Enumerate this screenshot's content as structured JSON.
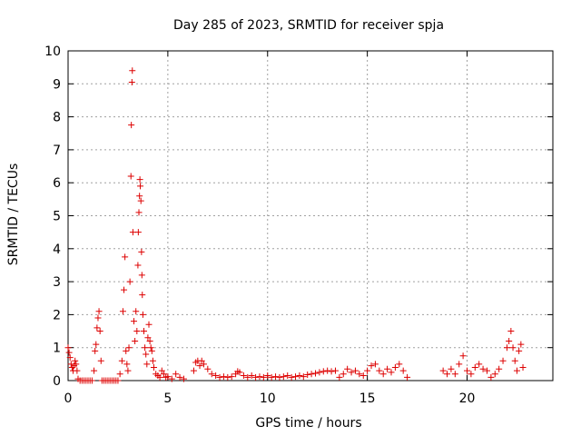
{
  "chart_data": {
    "type": "scatter",
    "title": "Day 285 of 2023, SRMTID for receiver spja",
    "xlabel": "GPS time / hours",
    "ylabel": "SRMTID / TECUs",
    "xlim": [
      0,
      24.3
    ],
    "ylim": [
      0,
      10
    ],
    "xticks": [
      0,
      5,
      10,
      15,
      20
    ],
    "yticks": [
      0,
      1,
      2,
      3,
      4,
      5,
      6,
      7,
      8,
      9,
      10
    ],
    "grid": true,
    "legend": "none",
    "marker": "+",
    "series": [
      {
        "name": "SRMTID",
        "color": "#dd0000",
        "points": [
          [
            0.0,
            1.0
          ],
          [
            0.05,
            0.85
          ],
          [
            0.1,
            0.7
          ],
          [
            0.15,
            0.5
          ],
          [
            0.2,
            0.4
          ],
          [
            0.25,
            0.3
          ],
          [
            0.3,
            0.45
          ],
          [
            0.35,
            0.6
          ],
          [
            0.4,
            0.5
          ],
          [
            0.45,
            0.3
          ],
          [
            0.5,
            0.05
          ],
          [
            0.6,
            0.0
          ],
          [
            0.7,
            0.0
          ],
          [
            0.8,
            0.0
          ],
          [
            0.9,
            0.0
          ],
          [
            1.0,
            0.0
          ],
          [
            1.1,
            0.0
          ],
          [
            1.2,
            0.0
          ],
          [
            1.3,
            0.3
          ],
          [
            1.35,
            0.9
          ],
          [
            1.4,
            1.1
          ],
          [
            1.45,
            1.6
          ],
          [
            1.5,
            1.9
          ],
          [
            1.55,
            2.1
          ],
          [
            1.6,
            1.5
          ],
          [
            1.65,
            0.6
          ],
          [
            1.7,
            0.0
          ],
          [
            1.8,
            0.0
          ],
          [
            1.9,
            0.0
          ],
          [
            2.0,
            0.0
          ],
          [
            2.1,
            0.0
          ],
          [
            2.2,
            0.0
          ],
          [
            2.3,
            0.0
          ],
          [
            2.4,
            0.0
          ],
          [
            2.5,
            0.0
          ],
          [
            2.6,
            0.2
          ],
          [
            2.7,
            0.6
          ],
          [
            2.75,
            2.1
          ],
          [
            2.8,
            2.75
          ],
          [
            2.85,
            3.75
          ],
          [
            2.9,
            0.9
          ],
          [
            2.95,
            0.5
          ],
          [
            3.0,
            0.3
          ],
          [
            3.05,
            1.0
          ],
          [
            3.1,
            3.0
          ],
          [
            3.15,
            6.2
          ],
          [
            3.17,
            7.75
          ],
          [
            3.2,
            9.05
          ],
          [
            3.22,
            9.4
          ],
          [
            3.25,
            4.5
          ],
          [
            3.3,
            1.8
          ],
          [
            3.35,
            1.2
          ],
          [
            3.4,
            2.1
          ],
          [
            3.45,
            1.5
          ],
          [
            3.5,
            3.5
          ],
          [
            3.52,
            4.5
          ],
          [
            3.55,
            5.1
          ],
          [
            3.58,
            5.6
          ],
          [
            3.6,
            6.1
          ],
          [
            3.62,
            5.9
          ],
          [
            3.65,
            5.45
          ],
          [
            3.68,
            3.9
          ],
          [
            3.7,
            3.2
          ],
          [
            3.72,
            2.6
          ],
          [
            3.75,
            2.0
          ],
          [
            3.8,
            1.5
          ],
          [
            3.85,
            1.0
          ],
          [
            3.9,
            0.8
          ],
          [
            3.95,
            0.5
          ],
          [
            4.0,
            1.3
          ],
          [
            4.05,
            1.7
          ],
          [
            4.1,
            1.2
          ],
          [
            4.15,
            1.0
          ],
          [
            4.2,
            0.9
          ],
          [
            4.25,
            0.6
          ],
          [
            4.3,
            0.4
          ],
          [
            4.4,
            0.2
          ],
          [
            4.5,
            0.15
          ],
          [
            4.6,
            0.1
          ],
          [
            4.7,
            0.3
          ],
          [
            4.8,
            0.2
          ],
          [
            4.9,
            0.1
          ],
          [
            5.0,
            0.12
          ],
          [
            5.2,
            0.05
          ],
          [
            5.4,
            0.2
          ],
          [
            5.6,
            0.1
          ],
          [
            5.8,
            0.05
          ],
          [
            6.3,
            0.3
          ],
          [
            6.4,
            0.55
          ],
          [
            6.5,
            0.6
          ],
          [
            6.6,
            0.45
          ],
          [
            6.7,
            0.6
          ],
          [
            6.8,
            0.5
          ],
          [
            7.0,
            0.35
          ],
          [
            7.2,
            0.2
          ],
          [
            7.4,
            0.15
          ],
          [
            7.6,
            0.1
          ],
          [
            7.8,
            0.12
          ],
          [
            8.0,
            0.1
          ],
          [
            8.2,
            0.12
          ],
          [
            8.4,
            0.2
          ],
          [
            8.5,
            0.28
          ],
          [
            8.6,
            0.25
          ],
          [
            8.8,
            0.15
          ],
          [
            9.0,
            0.1
          ],
          [
            9.2,
            0.15
          ],
          [
            9.4,
            0.1
          ],
          [
            9.6,
            0.12
          ],
          [
            9.8,
            0.1
          ],
          [
            10.0,
            0.15
          ],
          [
            10.2,
            0.1
          ],
          [
            10.4,
            0.12
          ],
          [
            10.6,
            0.1
          ],
          [
            10.8,
            0.12
          ],
          [
            11.0,
            0.15
          ],
          [
            11.2,
            0.1
          ],
          [
            11.4,
            0.12
          ],
          [
            11.6,
            0.15
          ],
          [
            11.8,
            0.12
          ],
          [
            12.0,
            0.18
          ],
          [
            12.2,
            0.2
          ],
          [
            12.4,
            0.22
          ],
          [
            12.6,
            0.25
          ],
          [
            12.8,
            0.28
          ],
          [
            13.0,
            0.3
          ],
          [
            13.2,
            0.28
          ],
          [
            13.4,
            0.3
          ],
          [
            13.6,
            0.1
          ],
          [
            13.8,
            0.2
          ],
          [
            14.0,
            0.35
          ],
          [
            14.2,
            0.25
          ],
          [
            14.4,
            0.3
          ],
          [
            14.6,
            0.2
          ],
          [
            14.8,
            0.15
          ],
          [
            15.0,
            0.3
          ],
          [
            15.2,
            0.45
          ],
          [
            15.4,
            0.5
          ],
          [
            15.6,
            0.3
          ],
          [
            15.8,
            0.2
          ],
          [
            16.0,
            0.35
          ],
          [
            16.2,
            0.25
          ],
          [
            16.4,
            0.4
          ],
          [
            16.6,
            0.5
          ],
          [
            16.8,
            0.3
          ],
          [
            17.0,
            0.1
          ],
          [
            18.8,
            0.3
          ],
          [
            19.0,
            0.2
          ],
          [
            19.2,
            0.35
          ],
          [
            19.4,
            0.2
          ],
          [
            19.6,
            0.5
          ],
          [
            19.8,
            0.75
          ],
          [
            20.0,
            0.3
          ],
          [
            20.2,
            0.2
          ],
          [
            20.4,
            0.4
          ],
          [
            20.6,
            0.5
          ],
          [
            20.8,
            0.35
          ],
          [
            21.0,
            0.3
          ],
          [
            21.2,
            0.1
          ],
          [
            21.4,
            0.2
          ],
          [
            21.6,
            0.35
          ],
          [
            21.8,
            0.6
          ],
          [
            22.0,
            1.0
          ],
          [
            22.1,
            1.2
          ],
          [
            22.2,
            1.5
          ],
          [
            22.3,
            1.0
          ],
          [
            22.4,
            0.6
          ],
          [
            22.5,
            0.3
          ],
          [
            22.6,
            0.9
          ],
          [
            22.7,
            1.1
          ],
          [
            22.8,
            0.4
          ]
        ]
      }
    ]
  }
}
